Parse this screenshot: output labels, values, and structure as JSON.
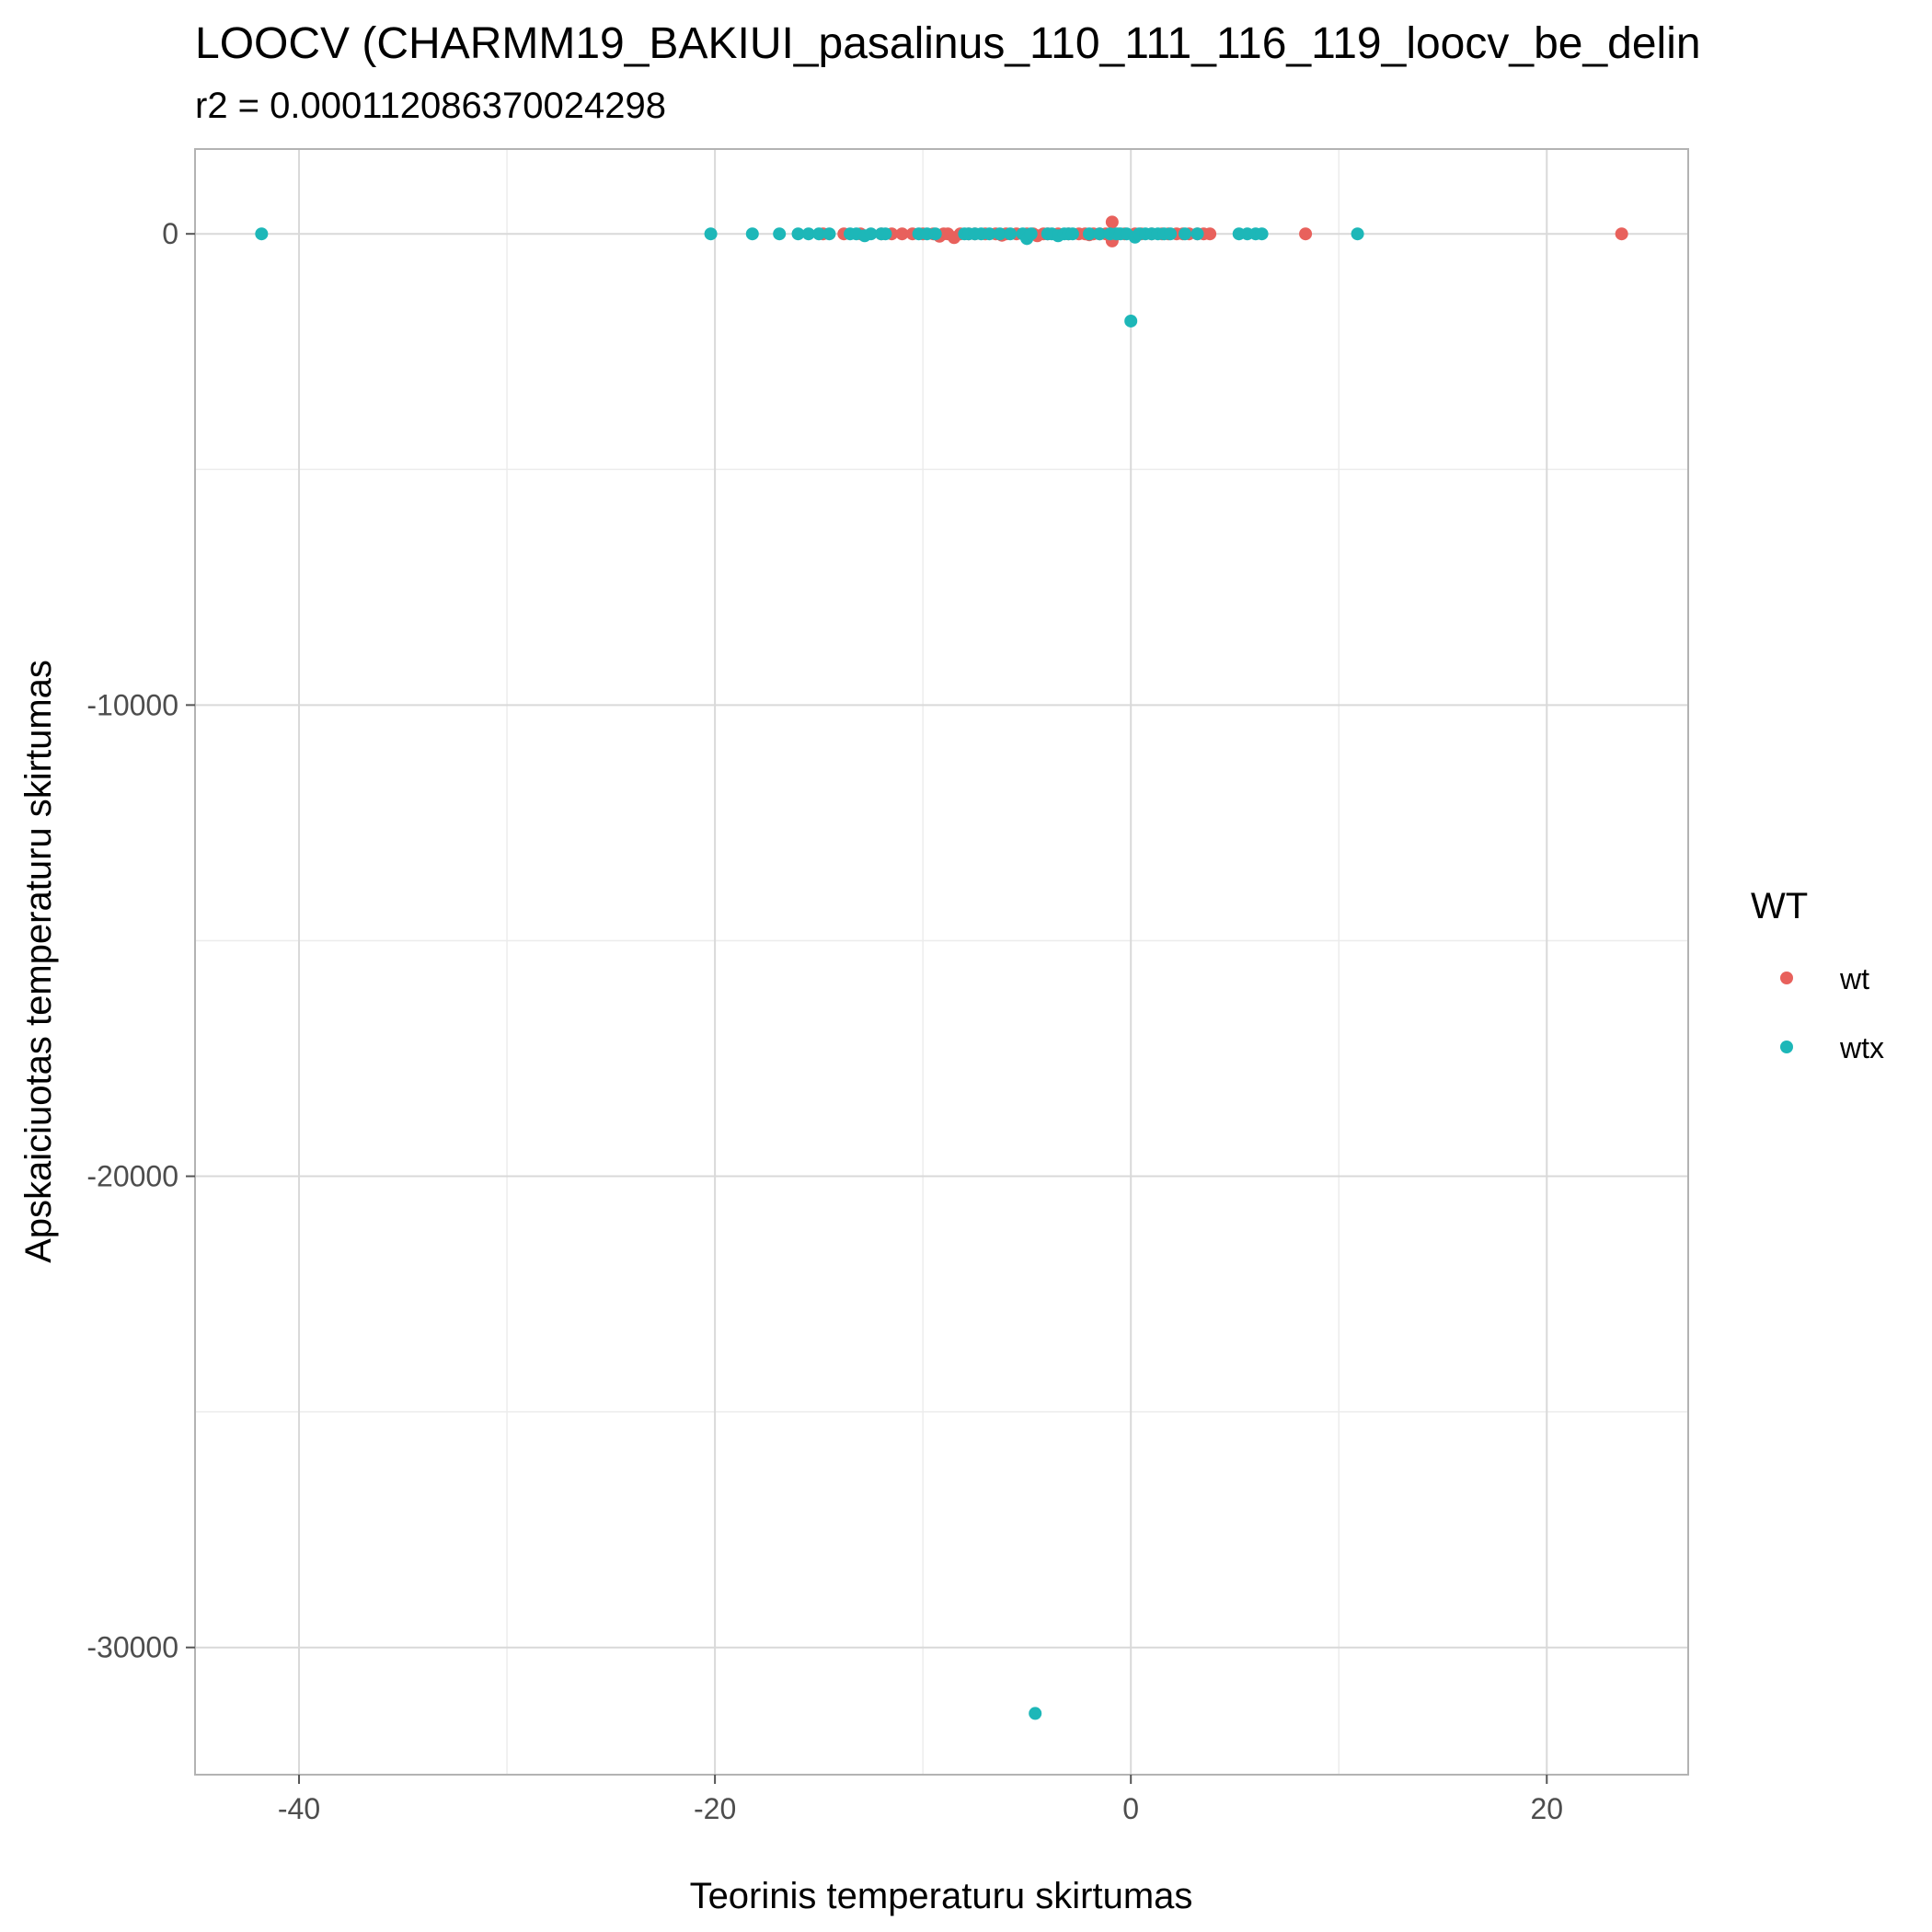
{
  "chart_data": {
    "type": "scatter",
    "title": "LOOCV (CHARMM19_BAKIUI_pasalinus_110_111_116_119_loocv_be_delin",
    "subtitle": "r2 = 0.000112086370024298",
    "xlabel": "Teorinis temperaturu skirtumas",
    "ylabel": "Apskaiciuotas temperaturu skirtumas",
    "xlim": [
      -45,
      26.8
    ],
    "ylim": [
      -32700,
      1800
    ],
    "x_ticks": [
      -40,
      -20,
      0,
      20
    ],
    "x_tick_labels": [
      "-40",
      "-20",
      "0",
      "20"
    ],
    "y_ticks": [
      0,
      -10000,
      -20000,
      -30000
    ],
    "y_tick_labels": [
      "0",
      "-10000",
      "-20000",
      "-30000"
    ],
    "grid": true,
    "legend": {
      "title": "WT",
      "position": "right"
    },
    "colors": {
      "wt": "#e8615c",
      "wtx": "#1db7b8"
    },
    "series": [
      {
        "name": "wt",
        "points": [
          [
            -14.8,
            0
          ],
          [
            -13.8,
            0
          ],
          [
            -13.0,
            0
          ],
          [
            -12.0,
            0
          ],
          [
            -11.5,
            0
          ],
          [
            -11.0,
            0
          ],
          [
            -10.5,
            0
          ],
          [
            -10.0,
            0
          ],
          [
            -9.5,
            0
          ],
          [
            -9.2,
            -50
          ],
          [
            -9.0,
            0
          ],
          [
            -8.8,
            0
          ],
          [
            -8.5,
            -80
          ],
          [
            -8.2,
            0
          ],
          [
            -7.8,
            0
          ],
          [
            -7.5,
            0
          ],
          [
            -7.0,
            0
          ],
          [
            -6.5,
            0
          ],
          [
            -6.2,
            -30
          ],
          [
            -6.0,
            0
          ],
          [
            -5.5,
            0
          ],
          [
            -5.0,
            0
          ],
          [
            -4.7,
            0
          ],
          [
            -4.5,
            -40
          ],
          [
            -4.2,
            0
          ],
          [
            -4.0,
            0
          ],
          [
            -3.5,
            0
          ],
          [
            -3.0,
            0
          ],
          [
            -2.5,
            0
          ],
          [
            -2.2,
            0
          ],
          [
            -2.0,
            -20
          ],
          [
            -1.8,
            0
          ],
          [
            -1.5,
            0
          ],
          [
            -1.2,
            0
          ],
          [
            -0.9,
            250
          ],
          [
            -0.9,
            -150
          ],
          [
            -0.6,
            0
          ],
          [
            -0.3,
            0
          ],
          [
            0.2,
            0
          ],
          [
            0.5,
            0
          ],
          [
            1.0,
            0
          ],
          [
            1.5,
            0
          ],
          [
            1.8,
            0
          ],
          [
            2.2,
            0
          ],
          [
            2.5,
            0
          ],
          [
            2.8,
            0
          ],
          [
            3.2,
            0
          ],
          [
            3.5,
            0
          ],
          [
            3.8,
            0
          ],
          [
            8.4,
            0
          ],
          [
            23.6,
            0
          ]
        ]
      },
      {
        "name": "wtx",
        "points": [
          [
            -41.8,
            0
          ],
          [
            -20.2,
            0
          ],
          [
            -18.2,
            0
          ],
          [
            -16.9,
            0
          ],
          [
            -16.0,
            0
          ],
          [
            -15.5,
            0
          ],
          [
            -15.0,
            0
          ],
          [
            -14.5,
            0
          ],
          [
            -13.5,
            0
          ],
          [
            -13.2,
            0
          ],
          [
            -12.8,
            -40
          ],
          [
            -12.5,
            0
          ],
          [
            -12.0,
            0
          ],
          [
            -11.8,
            0
          ],
          [
            -10.2,
            0
          ],
          [
            -9.8,
            0
          ],
          [
            -9.4,
            0
          ],
          [
            -8.0,
            0
          ],
          [
            -7.8,
            0
          ],
          [
            -7.5,
            0
          ],
          [
            -7.2,
            0
          ],
          [
            -6.8,
            0
          ],
          [
            -6.3,
            0
          ],
          [
            -5.8,
            0
          ],
          [
            -5.2,
            0
          ],
          [
            -5.0,
            -100
          ],
          [
            -4.8,
            0
          ],
          [
            -4.6,
            -31400
          ],
          [
            -4.0,
            0
          ],
          [
            -3.8,
            0
          ],
          [
            -3.5,
            -40
          ],
          [
            -3.2,
            0
          ],
          [
            -3.0,
            0
          ],
          [
            -2.8,
            0
          ],
          [
            -2.0,
            0
          ],
          [
            -1.5,
            0
          ],
          [
            -1.0,
            0
          ],
          [
            -0.7,
            0
          ],
          [
            -0.5,
            0
          ],
          [
            -0.2,
            0
          ],
          [
            0.0,
            -1850
          ],
          [
            0.2,
            -70
          ],
          [
            0.4,
            0
          ],
          [
            0.7,
            0
          ],
          [
            1.0,
            0
          ],
          [
            1.3,
            0
          ],
          [
            1.6,
            0
          ],
          [
            1.9,
            0
          ],
          [
            2.6,
            0
          ],
          [
            3.2,
            0
          ],
          [
            5.2,
            0
          ],
          [
            5.6,
            0
          ],
          [
            6.0,
            0
          ],
          [
            6.3,
            0
          ],
          [
            10.9,
            0
          ]
        ]
      }
    ]
  }
}
